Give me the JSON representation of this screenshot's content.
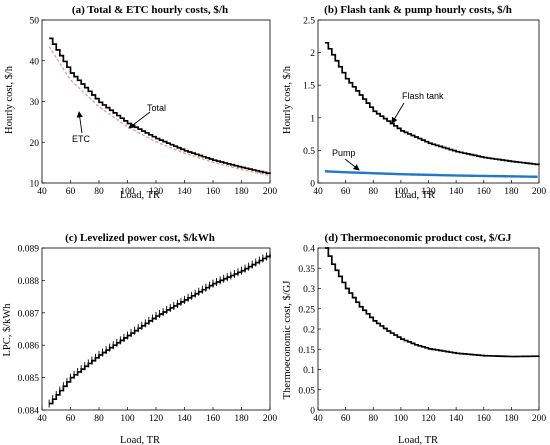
{
  "charts": [
    {
      "title": "(a) Total & ETC hourly costs, $/h",
      "xlabel": "Load, TR",
      "ylabel": "Hourly cost, $/h",
      "x_ticks": [
        "40",
        "60",
        "80",
        "100",
        "120",
        "140",
        "160",
        "180",
        "200"
      ],
      "y_ticks": [
        "10",
        "20",
        "30",
        "40",
        "50"
      ],
      "annotations": [
        "Total",
        "ETC"
      ]
    },
    {
      "title": "(b) Flash tank & pump hourly costs, $/h",
      "xlabel": "Load, TR",
      "ylabel": "Hourly cost, $/h",
      "x_ticks": [
        "40",
        "60",
        "80",
        "100",
        "120",
        "140",
        "160",
        "180",
        "200"
      ],
      "y_ticks": [
        "0",
        "0.5",
        "1",
        "1.5",
        "2",
        "2.5"
      ],
      "annotations": [
        "Flash tank",
        "Pump"
      ]
    },
    {
      "title": "(c) Levelized power cost, $/kWh",
      "xlabel": "Load, TR",
      "ylabel": "LPC, $/kWh",
      "x_ticks": [
        "40",
        "60",
        "80",
        "100",
        "120",
        "140",
        "160",
        "180",
        "200"
      ],
      "y_ticks": [
        "0.084",
        "0.085",
        "0.086",
        "0.087",
        "0.088",
        "0.089"
      ],
      "annotations": []
    },
    {
      "title": "(d) Thermoeconomic product cost, $/GJ",
      "xlabel": "Load, TR",
      "ylabel": "Thermoeconomic cost, $/GJ",
      "x_ticks": [
        "40",
        "60",
        "80",
        "100",
        "120",
        "140",
        "160",
        "180",
        "200"
      ],
      "y_ticks": [
        "0",
        "0.05",
        "0.1",
        "0.15",
        "0.2",
        "0.25",
        "0.3",
        "0.35",
        "0.4"
      ],
      "annotations": []
    }
  ],
  "colors": {
    "black": "#000000",
    "etc": "#e8a0a0",
    "pump": "#1f78c8"
  },
  "chart_data": [
    {
      "type": "line",
      "title": "(a) Total & ETC hourly costs, $/h",
      "xlabel": "Load, TR",
      "ylabel": "Hourly cost, $/h",
      "xlim": [
        40,
        200
      ],
      "ylim": [
        10,
        50
      ],
      "x": [
        45,
        60,
        80,
        100,
        120,
        140,
        160,
        180,
        200
      ],
      "series": [
        {
          "name": "Total",
          "values": [
            45.5,
            37.0,
            29.8,
            24.6,
            20.9,
            17.9,
            15.6,
            13.8,
            12.2
          ],
          "style": "step",
          "color": "#000000"
        },
        {
          "name": "ETC",
          "values": [
            43.5,
            35.3,
            28.7,
            23.8,
            20.1,
            17.3,
            15.1,
            13.3,
            11.8
          ],
          "style": "dashed",
          "color": "#e8a0a0"
        }
      ]
    },
    {
      "type": "line",
      "title": "(b) Flash tank & pump hourly costs, $/h",
      "xlabel": "Load, TR",
      "ylabel": "Hourly cost, $/h",
      "xlim": [
        40,
        200
      ],
      "ylim": [
        0,
        2.5
      ],
      "x": [
        45,
        60,
        80,
        100,
        120,
        140,
        160,
        180,
        200
      ],
      "series": [
        {
          "name": "Flash tank",
          "values": [
            2.15,
            1.6,
            1.1,
            0.8,
            0.61,
            0.48,
            0.39,
            0.33,
            0.28
          ],
          "style": "step",
          "color": "#000000"
        },
        {
          "name": "Pump",
          "values": [
            0.18,
            0.165,
            0.15,
            0.135,
            0.125,
            0.115,
            0.108,
            0.102,
            0.095
          ],
          "style": "line",
          "color": "#1f78c8"
        }
      ]
    },
    {
      "type": "line",
      "title": "(c) Levelized power cost, $/kWh",
      "xlabel": "Load, TR",
      "ylabel": "LPC, $/kWh",
      "xlim": [
        40,
        200
      ],
      "ylim": [
        0.084,
        0.089
      ],
      "x": [
        45,
        60,
        80,
        100,
        120,
        140,
        160,
        180,
        200
      ],
      "series": [
        {
          "name": "",
          "values": [
            0.0842,
            0.085,
            0.0857,
            0.0863,
            0.0869,
            0.0874,
            0.0879,
            0.0883,
            0.0888
          ],
          "style": "step",
          "color": "#000000"
        }
      ]
    },
    {
      "type": "line",
      "title": "(d) Thermoeconomic product cost, $/GJ",
      "xlabel": "Load, TR",
      "ylabel": "Thermoeconomic cost, $/GJ",
      "xlim": [
        40,
        200
      ],
      "ylim": [
        0,
        0.4
      ],
      "x": [
        45,
        50,
        60,
        70,
        80,
        90,
        100,
        110,
        120,
        140,
        160,
        180,
        200
      ],
      "series": [
        {
          "name": "",
          "values": [
            0.4,
            0.36,
            0.3,
            0.255,
            0.22,
            0.195,
            0.175,
            0.161,
            0.151,
            0.14,
            0.134,
            0.132,
            0.133
          ],
          "style": "step",
          "color": "#000000"
        }
      ]
    }
  ]
}
